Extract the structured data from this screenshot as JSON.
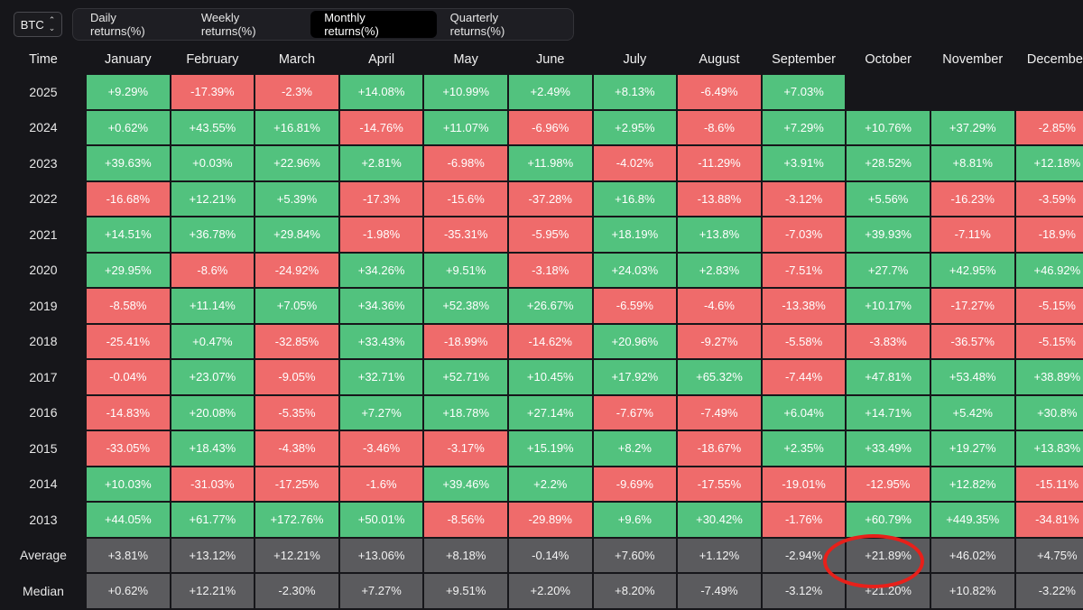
{
  "toolbar": {
    "asset": "BTC",
    "tabs": [
      "Daily returns(%)",
      "Weekly returns(%)",
      "Monthly returns(%)",
      "Quarterly returns(%)"
    ],
    "active_tab": 2
  },
  "colors": {
    "positive": "#52c27e",
    "negative": "#ef6b6b",
    "stat": "#5b5b5e",
    "highlight": "#e8201a"
  },
  "table": {
    "headers": [
      "Time",
      "January",
      "February",
      "March",
      "April",
      "May",
      "June",
      "July",
      "August",
      "September",
      "October",
      "November",
      "December"
    ],
    "rows": [
      {
        "label": "2025",
        "values": [
          "+9.29%",
          "-17.39%",
          "-2.3%",
          "+14.08%",
          "+10.99%",
          "+2.49%",
          "+8.13%",
          "-6.49%",
          "+7.03%",
          "",
          "",
          ""
        ]
      },
      {
        "label": "2024",
        "values": [
          "+0.62%",
          "+43.55%",
          "+16.81%",
          "-14.76%",
          "+11.07%",
          "-6.96%",
          "+2.95%",
          "-8.6%",
          "+7.29%",
          "+10.76%",
          "+37.29%",
          "-2.85%"
        ]
      },
      {
        "label": "2023",
        "values": [
          "+39.63%",
          "+0.03%",
          "+22.96%",
          "+2.81%",
          "-6.98%",
          "+11.98%",
          "-4.02%",
          "-11.29%",
          "+3.91%",
          "+28.52%",
          "+8.81%",
          "+12.18%"
        ]
      },
      {
        "label": "2022",
        "values": [
          "-16.68%",
          "+12.21%",
          "+5.39%",
          "-17.3%",
          "-15.6%",
          "-37.28%",
          "+16.8%",
          "-13.88%",
          "-3.12%",
          "+5.56%",
          "-16.23%",
          "-3.59%"
        ]
      },
      {
        "label": "2021",
        "values": [
          "+14.51%",
          "+36.78%",
          "+29.84%",
          "-1.98%",
          "-35.31%",
          "-5.95%",
          "+18.19%",
          "+13.8%",
          "-7.03%",
          "+39.93%",
          "-7.11%",
          "-18.9%"
        ]
      },
      {
        "label": "2020",
        "values": [
          "+29.95%",
          "-8.6%",
          "-24.92%",
          "+34.26%",
          "+9.51%",
          "-3.18%",
          "+24.03%",
          "+2.83%",
          "-7.51%",
          "+27.7%",
          "+42.95%",
          "+46.92%"
        ]
      },
      {
        "label": "2019",
        "values": [
          "-8.58%",
          "+11.14%",
          "+7.05%",
          "+34.36%",
          "+52.38%",
          "+26.67%",
          "-6.59%",
          "-4.6%",
          "-13.38%",
          "+10.17%",
          "-17.27%",
          "-5.15%"
        ]
      },
      {
        "label": "2018",
        "values": [
          "-25.41%",
          "+0.47%",
          "-32.85%",
          "+33.43%",
          "-18.99%",
          "-14.62%",
          "+20.96%",
          "-9.27%",
          "-5.58%",
          "-3.83%",
          "-36.57%",
          "-5.15%"
        ]
      },
      {
        "label": "2017",
        "values": [
          "-0.04%",
          "+23.07%",
          "-9.05%",
          "+32.71%",
          "+52.71%",
          "+10.45%",
          "+17.92%",
          "+65.32%",
          "-7.44%",
          "+47.81%",
          "+53.48%",
          "+38.89%"
        ]
      },
      {
        "label": "2016",
        "values": [
          "-14.83%",
          "+20.08%",
          "-5.35%",
          "+7.27%",
          "+18.78%",
          "+27.14%",
          "-7.67%",
          "-7.49%",
          "+6.04%",
          "+14.71%",
          "+5.42%",
          "+30.8%"
        ]
      },
      {
        "label": "2015",
        "values": [
          "-33.05%",
          "+18.43%",
          "-4.38%",
          "-3.46%",
          "-3.17%",
          "+15.19%",
          "+8.2%",
          "-18.67%",
          "+2.35%",
          "+33.49%",
          "+19.27%",
          "+13.83%"
        ]
      },
      {
        "label": "2014",
        "values": [
          "+10.03%",
          "-31.03%",
          "-17.25%",
          "-1.6%",
          "+39.46%",
          "+2.2%",
          "-9.69%",
          "-17.55%",
          "-19.01%",
          "-12.95%",
          "+12.82%",
          "-15.11%"
        ]
      },
      {
        "label": "2013",
        "values": [
          "+44.05%",
          "+61.77%",
          "+172.76%",
          "+50.01%",
          "-8.56%",
          "-29.89%",
          "+9.6%",
          "+30.42%",
          "-1.76%",
          "+60.79%",
          "+449.35%",
          "-34.81%"
        ]
      }
    ],
    "stats": [
      {
        "label": "Average",
        "values": [
          "+3.81%",
          "+13.12%",
          "+12.21%",
          "+13.06%",
          "+8.18%",
          "-0.14%",
          "+7.60%",
          "+1.12%",
          "-2.94%",
          "+21.89%",
          "+46.02%",
          "+4.75%"
        ]
      },
      {
        "label": "Median",
        "values": [
          "+0.62%",
          "+12.21%",
          "-2.30%",
          "+7.27%",
          "+9.51%",
          "+2.20%",
          "+8.20%",
          "-7.49%",
          "-3.12%",
          "+21.20%",
          "+10.82%",
          "-3.22%"
        ]
      }
    ]
  }
}
